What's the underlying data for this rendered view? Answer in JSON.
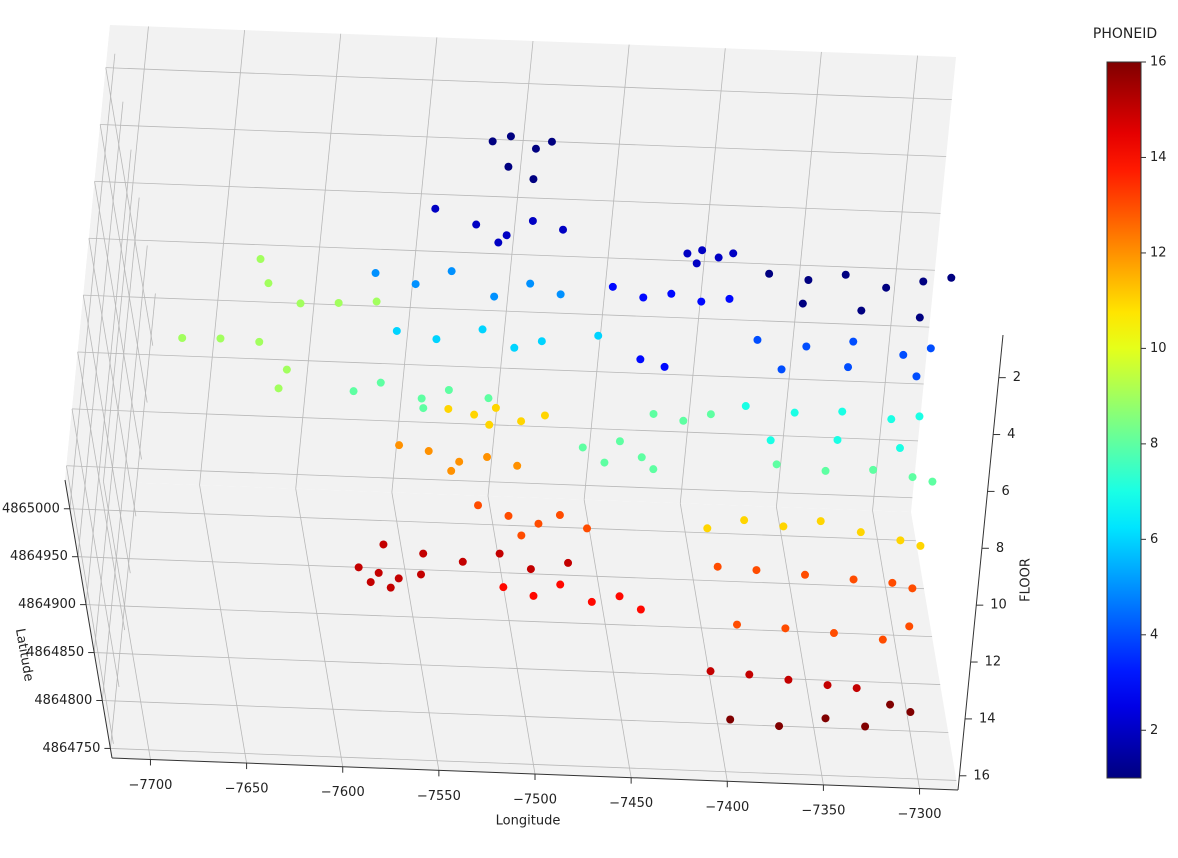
{
  "chart_data": {
    "type": "scatter3d",
    "xlabel": "Longitude",
    "ylabel": "Latitude",
    "zlabel": "FLOOR",
    "colorbar_label": "PHONEID",
    "colormap": "jet",
    "clim": [
      1,
      16
    ],
    "cticks": [
      2,
      4,
      6,
      8,
      10,
      12,
      14,
      16
    ],
    "xlim": [
      -7720,
      -7280
    ],
    "ylim": [
      4864740,
      4865030
    ],
    "zlim": [
      16.5,
      0.5
    ],
    "grid": true,
    "xticks": [
      {
        "value": -7700,
        "label": "−7700"
      },
      {
        "value": -7650,
        "label": "−7650"
      },
      {
        "value": -7600,
        "label": "−7600"
      },
      {
        "value": -7550,
        "label": "−7550"
      },
      {
        "value": -7500,
        "label": "−7500"
      },
      {
        "value": -7450,
        "label": "−7450"
      },
      {
        "value": -7400,
        "label": "−7400"
      },
      {
        "value": -7350,
        "label": "−7350"
      },
      {
        "value": -7300,
        "label": "−7300"
      }
    ],
    "yticks": [
      4864750,
      4864800,
      4864850,
      4864900,
      4864950,
      4865000
    ],
    "zticks": [
      2,
      4,
      6,
      8,
      10,
      12,
      14,
      16
    ],
    "x": [
      -7528,
      -7518,
      -7506,
      -7497,
      -7522,
      -7510,
      -7560,
      -7540,
      -7525,
      -7510,
      -7495,
      -7530,
      -7585,
      -7565,
      -7545,
      -7525,
      -7505,
      -7490,
      -7575,
      -7555,
      -7530,
      -7515,
      -7500,
      -7470,
      -7595,
      -7580,
      -7560,
      -7545,
      -7525,
      -7560,
      -7535,
      -7522,
      -7510,
      -7498,
      -7485,
      -7515,
      -7560,
      -7545,
      -7530,
      -7515,
      -7500,
      -7535,
      -7520,
      -7505,
      -7490,
      -7478,
      -7465,
      -7500,
      -7565,
      -7545,
      -7525,
      -7505,
      -7490,
      -7470,
      -7580,
      -7570,
      -7560,
      -7548,
      -7575,
      -7565,
      -7510,
      -7495,
      -7480,
      -7465,
      -7450,
      -7440,
      -7680,
      -7660,
      -7640,
      -7615,
      -7595,
      -7575,
      -7632,
      -7630,
      -7628,
      -7634,
      -7470,
      -7455,
      -7440,
      -7425,
      -7410,
      -7462,
      -7450,
      -7432,
      -7424,
      -7416,
      -7408,
      -7428,
      -7395,
      -7375,
      -7355,
      -7335,
      -7315,
      -7300,
      -7380,
      -7350,
      -7320,
      -7395,
      -7370,
      -7345,
      -7320,
      -7305,
      -7385,
      -7350,
      -7315,
      -7395,
      -7370,
      -7345,
      -7320,
      -7305,
      -7385,
      -7350,
      -7318,
      -7440,
      -7425,
      -7410,
      -7380,
      -7355,
      -7330,
      -7310,
      -7300,
      -7480,
      -7470,
      -7460,
      -7450,
      -7445,
      -7410,
      -7390,
      -7370,
      -7350,
      -7330,
      -7310,
      -7300,
      -7400,
      -7380,
      -7355,
      -7330,
      -7310,
      -7300,
      -7395,
      -7370,
      -7345,
      -7320,
      -7305,
      -7405,
      -7385,
      -7365,
      -7345,
      -7330,
      -7395,
      -7370,
      -7345,
      -7325,
      -7310,
      -7300
    ],
    "y": [
      4864938,
      4864944,
      4864932,
      4864940,
      4864912,
      4864900,
      4864895,
      4864880,
      4864870,
      4864886,
      4864878,
      4864862,
      4864915,
      4864905,
      4864920,
      4864895,
      4864910,
      4864900,
      4864885,
      4864878,
      4864890,
      4864872,
      4864880,
      4864888,
      4864880,
      4864890,
      4864875,
      4864885,
      4864878,
      4864865,
      4864955,
      4864950,
      4864958,
      4864945,
      4864952,
      4864940,
      4864945,
      4864940,
      4864930,
      4864936,
      4864928,
      4864920,
      4864915,
      4864905,
      4864898,
      4864908,
      4864895,
      4864885,
      4864930,
      4864922,
      4864915,
      4864925,
      4864910,
      4864918,
      4864905,
      4864900,
      4864895,
      4864900,
      4864890,
      4864885,
      4864860,
      4864852,
      4864865,
      4864848,
      4864855,
      4864842,
      4864929,
      4864930,
      4864928,
      4864970,
      4864972,
      4864975,
      4865015,
      4864990,
      4864900,
      4864880,
      4864850,
      4864840,
      4864845,
      4864838,
      4864842,
      4864775,
      4864768,
      4864858,
      4864862,
      4864855,
      4864860,
      4864848,
      4864810,
      4864805,
      4864812,
      4864800,
      4864808,
      4864813,
      4864780,
      4864775,
      4864770,
      4864830,
      4864825,
      4864832,
      4864820,
      4864828,
      4864800,
      4864805,
      4864798,
      4864850,
      4864845,
      4864848,
      4864842,
      4864846,
      4864815,
      4864818,
      4864812,
      4864868,
      4864862,
      4864870,
      4864820,
      4864815,
      4864818,
      4864812,
      4864808,
      4864830,
      4864815,
      4864838,
      4864822,
      4864810,
      4864840,
      4864850,
      4864845,
      4864852,
      4864842,
      4864835,
      4864830,
      4864860,
      4864858,
      4864855,
      4864852,
      4864850,
      4864845,
      4864800,
      4864798,
      4864795,
      4864790,
      4864805,
      4864810,
      4864808,
      4864804,
      4864800,
      4864798,
      4864790,
      4864785,
      4864795,
      4864788,
      4864812,
      4864805
    ],
    "z": [
      1,
      1,
      1,
      1,
      1,
      1,
      2,
      2,
      2,
      2,
      2,
      2,
      5,
      5,
      5,
      5,
      5,
      5,
      6,
      6,
      6,
      6,
      6,
      6,
      8,
      8,
      8,
      8,
      8,
      8,
      11,
      11,
      11,
      11,
      11,
      11,
      12,
      12,
      12,
      12,
      12,
      12,
      13,
      13,
      13,
      13,
      13,
      13,
      15,
      15,
      15,
      15,
      15,
      15,
      15,
      15,
      15,
      15,
      15,
      15,
      14,
      14,
      14,
      14,
      14,
      14,
      8,
      8,
      8,
      8,
      8,
      8,
      8,
      8,
      8,
      8,
      3,
      3,
      3,
      3,
      3,
      3,
      3,
      2,
      2,
      2,
      2,
      2,
      1,
      1,
      1,
      1,
      1,
      1,
      1,
      1,
      1,
      4,
      4,
      4,
      4,
      4,
      4,
      4,
      4,
      7,
      7,
      7,
      7,
      7,
      7,
      7,
      7,
      8,
      8,
      8,
      8,
      8,
      8,
      8,
      8,
      8,
      8,
      8,
      8,
      8,
      11,
      11,
      11,
      11,
      11,
      11,
      11,
      13,
      13,
      13,
      13,
      13,
      13,
      13,
      13,
      13,
      13,
      13,
      15,
      15,
      15,
      15,
      15,
      16,
      16,
      16,
      16,
      16,
      16
    ],
    "values": [
      1,
      1,
      1,
      1,
      1,
      1,
      2,
      2,
      2,
      2,
      2,
      2,
      5,
      5,
      5,
      5,
      5,
      5,
      6,
      6,
      6,
      6,
      6,
      6,
      8,
      8,
      8,
      8,
      8,
      8,
      11,
      11,
      11,
      11,
      11,
      11,
      12,
      12,
      12,
      12,
      12,
      12,
      13,
      13,
      13,
      13,
      13,
      13,
      15,
      15,
      15,
      15,
      15,
      15,
      15,
      15,
      15,
      15,
      15,
      15,
      14,
      14,
      14,
      14,
      14,
      14,
      9,
      9,
      9,
      9,
      9,
      9,
      9,
      9,
      9,
      9,
      3,
      3,
      3,
      3,
      3,
      3,
      3,
      2,
      2,
      2,
      2,
      2,
      1,
      1,
      1,
      1,
      1,
      1,
      1,
      1,
      1,
      4,
      4,
      4,
      4,
      4,
      4,
      4,
      4,
      7,
      7,
      7,
      7,
      7,
      7,
      7,
      7,
      8,
      8,
      8,
      8,
      8,
      8,
      8,
      8,
      8,
      8,
      8,
      8,
      8,
      11,
      11,
      11,
      11,
      11,
      11,
      11,
      13,
      13,
      13,
      13,
      13,
      13,
      13,
      13,
      13,
      13,
      13,
      15,
      15,
      15,
      15,
      15,
      16,
      16,
      16,
      16,
      16,
      16
    ]
  }
}
